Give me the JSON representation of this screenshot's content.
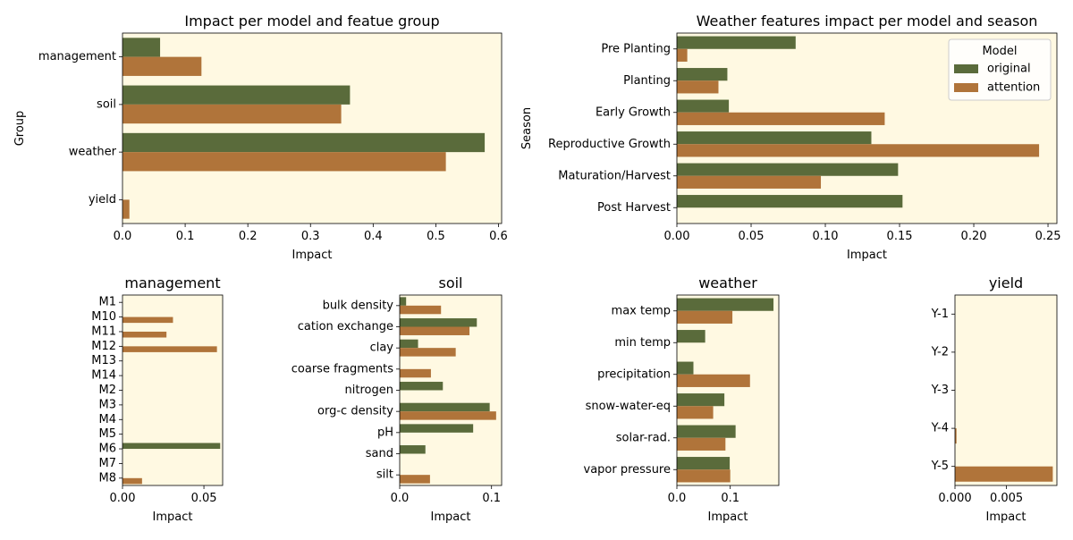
{
  "colors": {
    "original": "#5a6b3b",
    "attention": "#b0743a",
    "panel_bg": "#fff9e2"
  },
  "chart_data": [
    {
      "type": "bar",
      "orientation": "horizontal",
      "title": "Impact per model and featue group",
      "xlabel": "Impact",
      "ylabel": "Group",
      "categories": [
        "management",
        "soil",
        "weather",
        "yield"
      ],
      "series": [
        {
          "name": "original",
          "values": [
            0.06,
            0.363,
            0.578,
            0.0
          ]
        },
        {
          "name": "attention",
          "values": [
            0.126,
            0.349,
            0.516,
            0.011
          ]
        }
      ],
      "xlim": [
        0,
        0.605
      ],
      "xticks": [
        0,
        0.1,
        0.2,
        0.3,
        0.4,
        0.5,
        0.6
      ],
      "xtick_labels": [
        "0.0",
        "0.1",
        "0.2",
        "0.3",
        "0.4",
        "0.5",
        "0.6"
      ],
      "legend": null
    },
    {
      "type": "bar",
      "orientation": "horizontal",
      "title": "Weather features impact per model and season",
      "xlabel": "Impact",
      "ylabel": "Season",
      "categories": [
        "Pre Planting",
        "Planting",
        "Early Growth",
        "Reproductive Growth",
        "Maturation/Harvest",
        "Post Harvest"
      ],
      "series": [
        {
          "name": "original",
          "values": [
            0.08,
            0.034,
            0.035,
            0.131,
            0.149,
            0.152
          ]
        },
        {
          "name": "attention",
          "values": [
            0.007,
            0.028,
            0.14,
            0.244,
            0.097,
            0.0
          ]
        }
      ],
      "xlim": [
        0,
        0.256
      ],
      "xticks": [
        0,
        0.05,
        0.1,
        0.15,
        0.2,
        0.25
      ],
      "xtick_labels": [
        "0.00",
        "0.05",
        "0.10",
        "0.15",
        "0.20",
        "0.25"
      ],
      "legend": {
        "title": "Model",
        "entries": [
          "original",
          "attention"
        ],
        "position": "top-right"
      }
    },
    {
      "type": "bar",
      "orientation": "horizontal",
      "title": "management",
      "xlabel": "Impact",
      "ylabel": "",
      "categories": [
        "M1",
        "M10",
        "M11",
        "M12",
        "M13",
        "M14",
        "M2",
        "M3",
        "M4",
        "M5",
        "M6",
        "M7",
        "M8"
      ],
      "series": [
        {
          "name": "original",
          "values": [
            0,
            0,
            0,
            0,
            0,
            0,
            0,
            0,
            0,
            0,
            0.06,
            0,
            0
          ]
        },
        {
          "name": "attention",
          "values": [
            0,
            0.031,
            0.027,
            0.058,
            0,
            0,
            0,
            0,
            0,
            0,
            0,
            0,
            0.012
          ]
        }
      ],
      "xlim": [
        0,
        0.0615
      ],
      "xticks": [
        0,
        0.05
      ],
      "xtick_labels": [
        "0.00",
        "0.05"
      ],
      "legend": null
    },
    {
      "type": "bar",
      "orientation": "horizontal",
      "title": "soil",
      "xlabel": "Impact",
      "ylabel": "",
      "categories": [
        "bulk density",
        "cation exchange",
        "clay",
        "coarse fragments",
        "nitrogen",
        "org-c density",
        "pH",
        "sand",
        "silt"
      ],
      "series": [
        {
          "name": "original",
          "values": [
            0.007,
            0.084,
            0.02,
            0.0,
            0.047,
            0.098,
            0.08,
            0.028,
            0.0
          ]
        },
        {
          "name": "attention",
          "values": [
            0.045,
            0.076,
            0.061,
            0.034,
            0.0,
            0.105,
            0.0,
            0.0,
            0.033
          ]
        }
      ],
      "xlim": [
        0,
        0.111
      ],
      "xticks": [
        0,
        0.1
      ],
      "xtick_labels": [
        "0.0",
        "0.1"
      ],
      "legend": null
    },
    {
      "type": "bar",
      "orientation": "horizontal",
      "title": "weather",
      "xlabel": "Impact",
      "ylabel": "",
      "categories": [
        "max temp",
        "min temp",
        "precipitation",
        "snow-water-eq",
        "solar-rad.",
        "vapor pressure"
      ],
      "series": [
        {
          "name": "original",
          "values": [
            0.181,
            0.053,
            0.031,
            0.089,
            0.11,
            0.099
          ]
        },
        {
          "name": "attention",
          "values": [
            0.104,
            0.0,
            0.137,
            0.068,
            0.091,
            0.1
          ]
        }
      ],
      "xlim": [
        0,
        0.191
      ],
      "xticks": [
        0,
        0.1
      ],
      "xtick_labels": [
        "0.0",
        "0.1"
      ],
      "legend": null
    },
    {
      "type": "bar",
      "orientation": "horizontal",
      "title": "yield",
      "xlabel": "Impact",
      "ylabel": "",
      "categories": [
        "Y-1",
        "Y-2",
        "Y-3",
        "Y-4",
        "Y-5"
      ],
      "series": [
        {
          "name": "original",
          "values": [
            0,
            0,
            0,
            0,
            0
          ]
        },
        {
          "name": "attention",
          "values": [
            0,
            0,
            0,
            0.00015,
            0.0095
          ]
        }
      ],
      "xlim": [
        0,
        0.0099
      ],
      "xticks": [
        0,
        0.005
      ],
      "xtick_labels": [
        "0.000",
        "0.005"
      ],
      "legend": null
    }
  ]
}
